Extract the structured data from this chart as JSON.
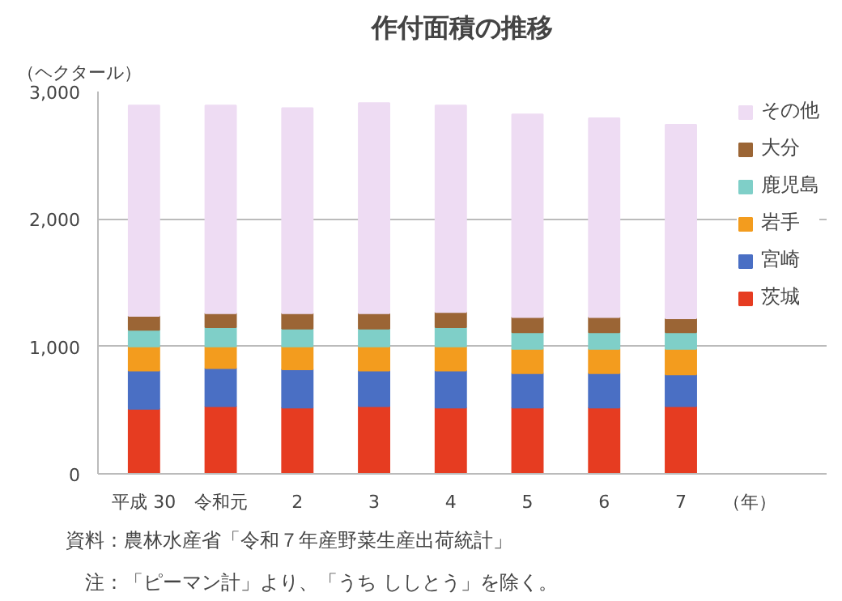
{
  "chart_data": {
    "type": "bar",
    "title": "作付面積の推移",
    "ylabel": "（ヘクタール）",
    "xlabel": "（年）",
    "categories": [
      "平成 30",
      "令和元",
      "2",
      "3",
      "4",
      "5",
      "6",
      "7"
    ],
    "stacked": true,
    "series": [
      {
        "name": "茨城",
        "color": "#e63c21",
        "values": [
          510,
          530,
          520,
          530,
          520,
          520,
          520,
          530
        ]
      },
      {
        "name": "宮崎",
        "color": "#4a6fc4",
        "values": [
          300,
          300,
          300,
          280,
          290,
          270,
          270,
          250
        ]
      },
      {
        "name": "岩手",
        "color": "#f39c1e",
        "values": [
          190,
          170,
          180,
          190,
          190,
          190,
          190,
          200
        ]
      },
      {
        "name": "鹿児島",
        "color": "#7fcfc8",
        "values": [
          130,
          150,
          140,
          140,
          150,
          130,
          130,
          130
        ]
      },
      {
        "name": "大分",
        "color": "#9b6535",
        "values": [
          110,
          110,
          120,
          120,
          120,
          120,
          120,
          110
        ]
      },
      {
        "name": "その他",
        "color": "#eedcf3",
        "values": [
          1650,
          1630,
          1610,
          1650,
          1620,
          1590,
          1560,
          1520
        ]
      }
    ],
    "ylim": [
      0,
      3000
    ],
    "yticks": [
      0,
      {
        "value": 1000,
        "label": "1,000"
      },
      {
        "value": 2000,
        "label": "2,000"
      },
      {
        "value": 3000,
        "label": "3,000"
      }
    ],
    "grid": "y",
    "legend": "top right",
    "annotations": [
      "資料：農林水産省「令和７年産野菜生産出荷統計」",
      "　注：「ピーマン計」より、「うち ししとう」を除く。"
    ]
  }
}
